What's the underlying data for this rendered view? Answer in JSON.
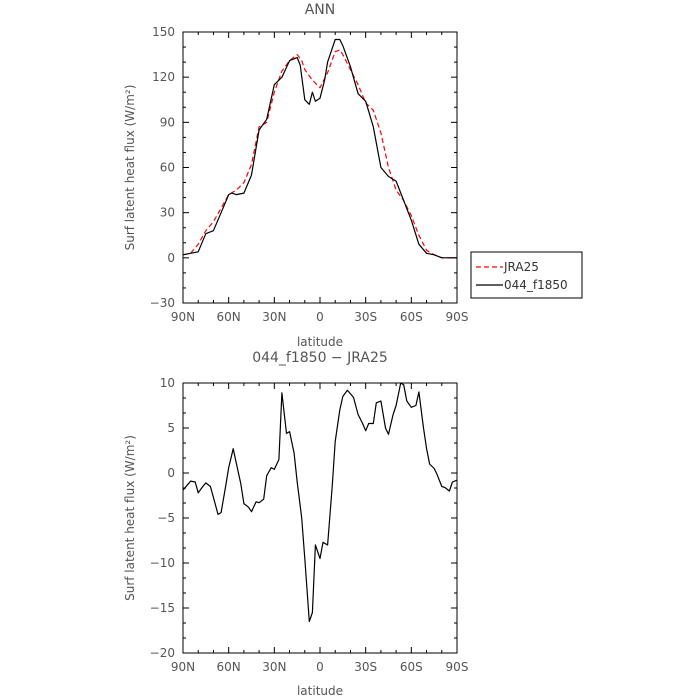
{
  "chart_data": [
    {
      "type": "line",
      "title": "ANN",
      "xlabel": "latitude",
      "ylabel": "Surf latent heat flux (W/m²)",
      "xlim": [
        90,
        -90
      ],
      "ylim": [
        -30,
        150
      ],
      "xticks": [
        90,
        60,
        30,
        0,
        -30,
        -60,
        -90
      ],
      "xtick_labels": [
        "90N",
        "60N",
        "30N",
        "0",
        "30S",
        "60S",
        "90S"
      ],
      "yticks": [
        -30,
        0,
        30,
        60,
        90,
        120,
        150
      ],
      "ytick_labels": [
        "−30",
        "0",
        "30",
        "60",
        "90",
        "120",
        "150"
      ],
      "legend": "right-middle",
      "series": [
        {
          "name": "JRA25",
          "color": "#ff0000",
          "style": "dashed",
          "x": [
            90,
            85,
            80,
            75,
            70,
            65,
            60,
            55,
            50,
            45,
            40,
            35,
            30,
            25,
            20,
            15,
            12,
            10,
            5,
            0,
            -5,
            -10,
            -13,
            -15,
            -20,
            -25,
            -30,
            -35,
            -40,
            -45,
            -50,
            -55,
            -60,
            -65,
            -70,
            -75,
            -80,
            -85,
            -90
          ],
          "y": [
            2,
            3,
            9,
            18,
            24,
            33,
            42,
            45,
            50,
            62,
            87,
            90,
            110,
            124,
            131,
            135,
            131,
            125,
            118,
            113,
            123,
            137,
            138,
            135,
            125,
            115,
            103,
            98,
            83,
            60,
            45,
            38,
            28,
            15,
            5,
            2,
            0,
            0,
            0
          ]
        },
        {
          "name": "044_f1850",
          "color": "#000000",
          "style": "solid",
          "x": [
            90,
            85,
            80,
            75,
            70,
            65,
            60,
            58,
            55,
            50,
            45,
            40,
            35,
            30,
            25,
            20,
            15,
            13,
            10,
            7,
            5,
            3,
            0,
            -3,
            -5,
            -10,
            -13,
            -15,
            -20,
            -25,
            -30,
            -35,
            -40,
            -45,
            -50,
            -55,
            -60,
            -65,
            -70,
            -75,
            -80,
            -85,
            -90
          ],
          "y": [
            2,
            3,
            4,
            16,
            18,
            30,
            42,
            43,
            42,
            43,
            55,
            85,
            92,
            115,
            120,
            131,
            133,
            128,
            105,
            102,
            110,
            104,
            106,
            118,
            130,
            145,
            145,
            141,
            127,
            109,
            104,
            87,
            60,
            54,
            51,
            38,
            25,
            9,
            3,
            2,
            0,
            0,
            0
          ]
        }
      ]
    },
    {
      "type": "line",
      "title": "044_f1850 − JRA25",
      "xlabel": "latitude",
      "ylabel": "Surf latent heat flux (W/m²)",
      "xlim": [
        90,
        -90
      ],
      "ylim": [
        -20,
        10
      ],
      "xticks": [
        90,
        60,
        30,
        0,
        -30,
        -60,
        -90
      ],
      "xtick_labels": [
        "90N",
        "60N",
        "30N",
        "0",
        "30S",
        "60S",
        "90S"
      ],
      "yticks": [
        -20,
        -15,
        -10,
        -5,
        0,
        5,
        10
      ],
      "ytick_labels": [
        "−20",
        "−15",
        "−10",
        "−5",
        "0",
        "5",
        "10"
      ],
      "series": [
        {
          "color": "#000000",
          "style": "solid",
          "x": [
            90,
            87,
            85,
            82,
            80,
            77,
            75,
            72,
            70,
            67,
            65,
            62,
            60,
            57,
            55,
            52,
            50,
            47,
            45,
            42,
            40,
            37,
            35,
            32,
            30,
            27,
            25,
            22,
            20,
            17,
            15,
            12,
            10,
            7,
            5,
            3,
            0,
            -2,
            -5,
            -8,
            -10,
            -13,
            -15,
            -18,
            -20,
            -22,
            -25,
            -28,
            -30,
            -32,
            -35,
            -37,
            -40,
            -43,
            -45,
            -48,
            -50,
            -53,
            -55,
            -57,
            -60,
            -63,
            -65,
            -68,
            -70,
            -72,
            -75,
            -77,
            -80,
            -82,
            -85,
            -87,
            -90
          ],
          "y": [
            -1.9,
            -1.3,
            -0.9,
            -1,
            -2.2,
            -1.5,
            -1.1,
            -1.5,
            -2.7,
            -4.6,
            -4.4,
            -1.5,
            0.6,
            2.7,
            1.1,
            -1.2,
            -3.4,
            -3.8,
            -4.3,
            -3.2,
            -3.3,
            -2.9,
            -0.3,
            0.6,
            0.4,
            1.5,
            8.9,
            4.4,
            4.6,
            2.2,
            -1,
            -5,
            -9.5,
            -16.5,
            -15.5,
            -8,
            -9.5,
            -7.7,
            -8,
            -1.5,
            3.5,
            7,
            8.5,
            9.2,
            8.8,
            8.4,
            6.5,
            5.5,
            4.7,
            5.5,
            5.5,
            7.8,
            8,
            5,
            4.3,
            6.5,
            7.5,
            10,
            9.8,
            8,
            7.3,
            7.5,
            9,
            5,
            2.7,
            1,
            0.5,
            -0.2,
            -1.5,
            -1.6,
            -2,
            -1,
            -0.8
          ]
        }
      ]
    }
  ]
}
